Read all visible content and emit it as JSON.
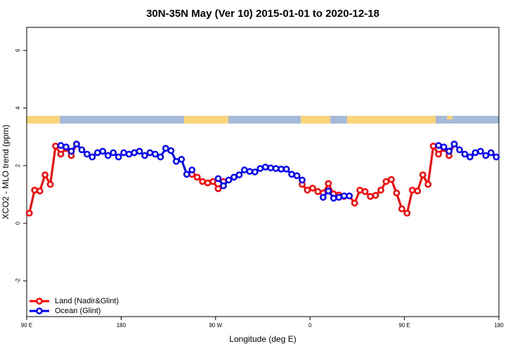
{
  "chart_data": {
    "type": "line",
    "title": "30N-35N May (Ver 10)   2015-01-01 to 2020-12-18",
    "x_label": "Longitude (deg E)",
    "y_label": "XCO2 - MLO trend (ppm)",
    "xlim": [
      90,
      540
    ],
    "ylim": [
      -3.24,
      6.8
    ],
    "xticks": [
      {
        "value": 90,
        "label": "90 E"
      },
      180,
      {
        "value": 270,
        "label": "90 W"
      },
      {
        "value": 360,
        "label": "0"
      },
      {
        "value": 450,
        "label": "90 E"
      },
      {
        "value": 540,
        "label": "180"
      }
    ],
    "yticks": [
      -2,
      0,
      2,
      4,
      6
    ],
    "legend": "bottomleft",
    "series": [
      {
        "name": "Land (Nadir&Glint)",
        "color": "#ff0000",
        "x": [
          92.5,
          97.5,
          102.5,
          107.5,
          112.5,
          117.5,
          122.5,
          127.5,
          132.5,
          137.5,
          142.5,
          247.5,
          252.5,
          257.5,
          262.5,
          267.5,
          272.5,
          277.5,
          282.5,
          352.5,
          357.5,
          362.5,
          367.5,
          372.5,
          377.5,
          382.5,
          387.5,
          392.5,
          397.5,
          402.5,
          407.5,
          412.5,
          417.5,
          422.5,
          427.5,
          432.5,
          437.5,
          442.5,
          447.5,
          452.5,
          457.5,
          462.5,
          467.5,
          472.5,
          477.5,
          482.5,
          487.5,
          492.5,
          497.5
        ],
        "values": [
          0.35,
          1.15,
          1.12,
          1.68,
          1.35,
          2.68,
          2.4,
          2.6,
          2.35,
          2.75,
          null,
          1.7,
          1.6,
          1.45,
          1.4,
          1.45,
          1.2,
          1.45,
          null,
          1.35,
          1.15,
          1.22,
          1.1,
          1.05,
          1.38,
          1.02,
          0.98,
          0.93,
          0.95,
          0.7,
          1.15,
          1.1,
          0.93,
          0.97,
          1.15,
          1.45,
          1.52,
          1.05,
          0.5,
          0.35,
          1.15,
          1.12,
          1.68,
          1.35,
          2.68,
          2.4,
          2.6,
          2.35,
          2.75
        ]
      },
      {
        "name": "Ocean (Glint)",
        "color": "#0000ff",
        "x": [
          122.5,
          127.5,
          132.5,
          137.5,
          142.5,
          147.5,
          152.5,
          157.5,
          162.5,
          167.5,
          172.5,
          177.5,
          182.5,
          187.5,
          192.5,
          197.5,
          202.5,
          207.5,
          212.5,
          217.5,
          222.5,
          227.5,
          232.5,
          237.5,
          242.5,
          247.5,
          252.5,
          272.5,
          277.5,
          282.5,
          287.5,
          292.5,
          297.5,
          302.5,
          307.5,
          312.5,
          317.5,
          322.5,
          327.5,
          332.5,
          337.5,
          342.5,
          347.5,
          352.5,
          357.5,
          372.5,
          377.5,
          382.5,
          387.5,
          392.5,
          397.5,
          402.5,
          482.5,
          487.5,
          492.5,
          497.5,
          502.5,
          507.5,
          512.5,
          517.5,
          522.5,
          527.5,
          532.5,
          537.5
        ],
        "values": [
          2.7,
          2.65,
          2.5,
          2.75,
          2.55,
          2.4,
          2.3,
          2.45,
          2.5,
          2.35,
          2.45,
          2.3,
          2.45,
          2.4,
          2.45,
          2.5,
          2.35,
          2.45,
          2.4,
          2.3,
          2.6,
          2.52,
          2.15,
          2.22,
          1.7,
          1.85,
          null,
          1.55,
          1.3,
          1.5,
          1.6,
          1.68,
          1.85,
          1.8,
          1.78,
          1.9,
          1.95,
          1.92,
          1.9,
          1.88,
          1.88,
          1.7,
          1.65,
          1.5,
          null,
          0.9,
          1.12,
          0.87,
          0.9,
          0.95,
          0.95,
          null,
          2.7,
          2.65,
          2.5,
          2.75,
          2.55,
          2.4,
          2.3,
          2.45,
          2.5,
          2.35,
          2.45,
          2.3
        ]
      }
    ]
  }
}
